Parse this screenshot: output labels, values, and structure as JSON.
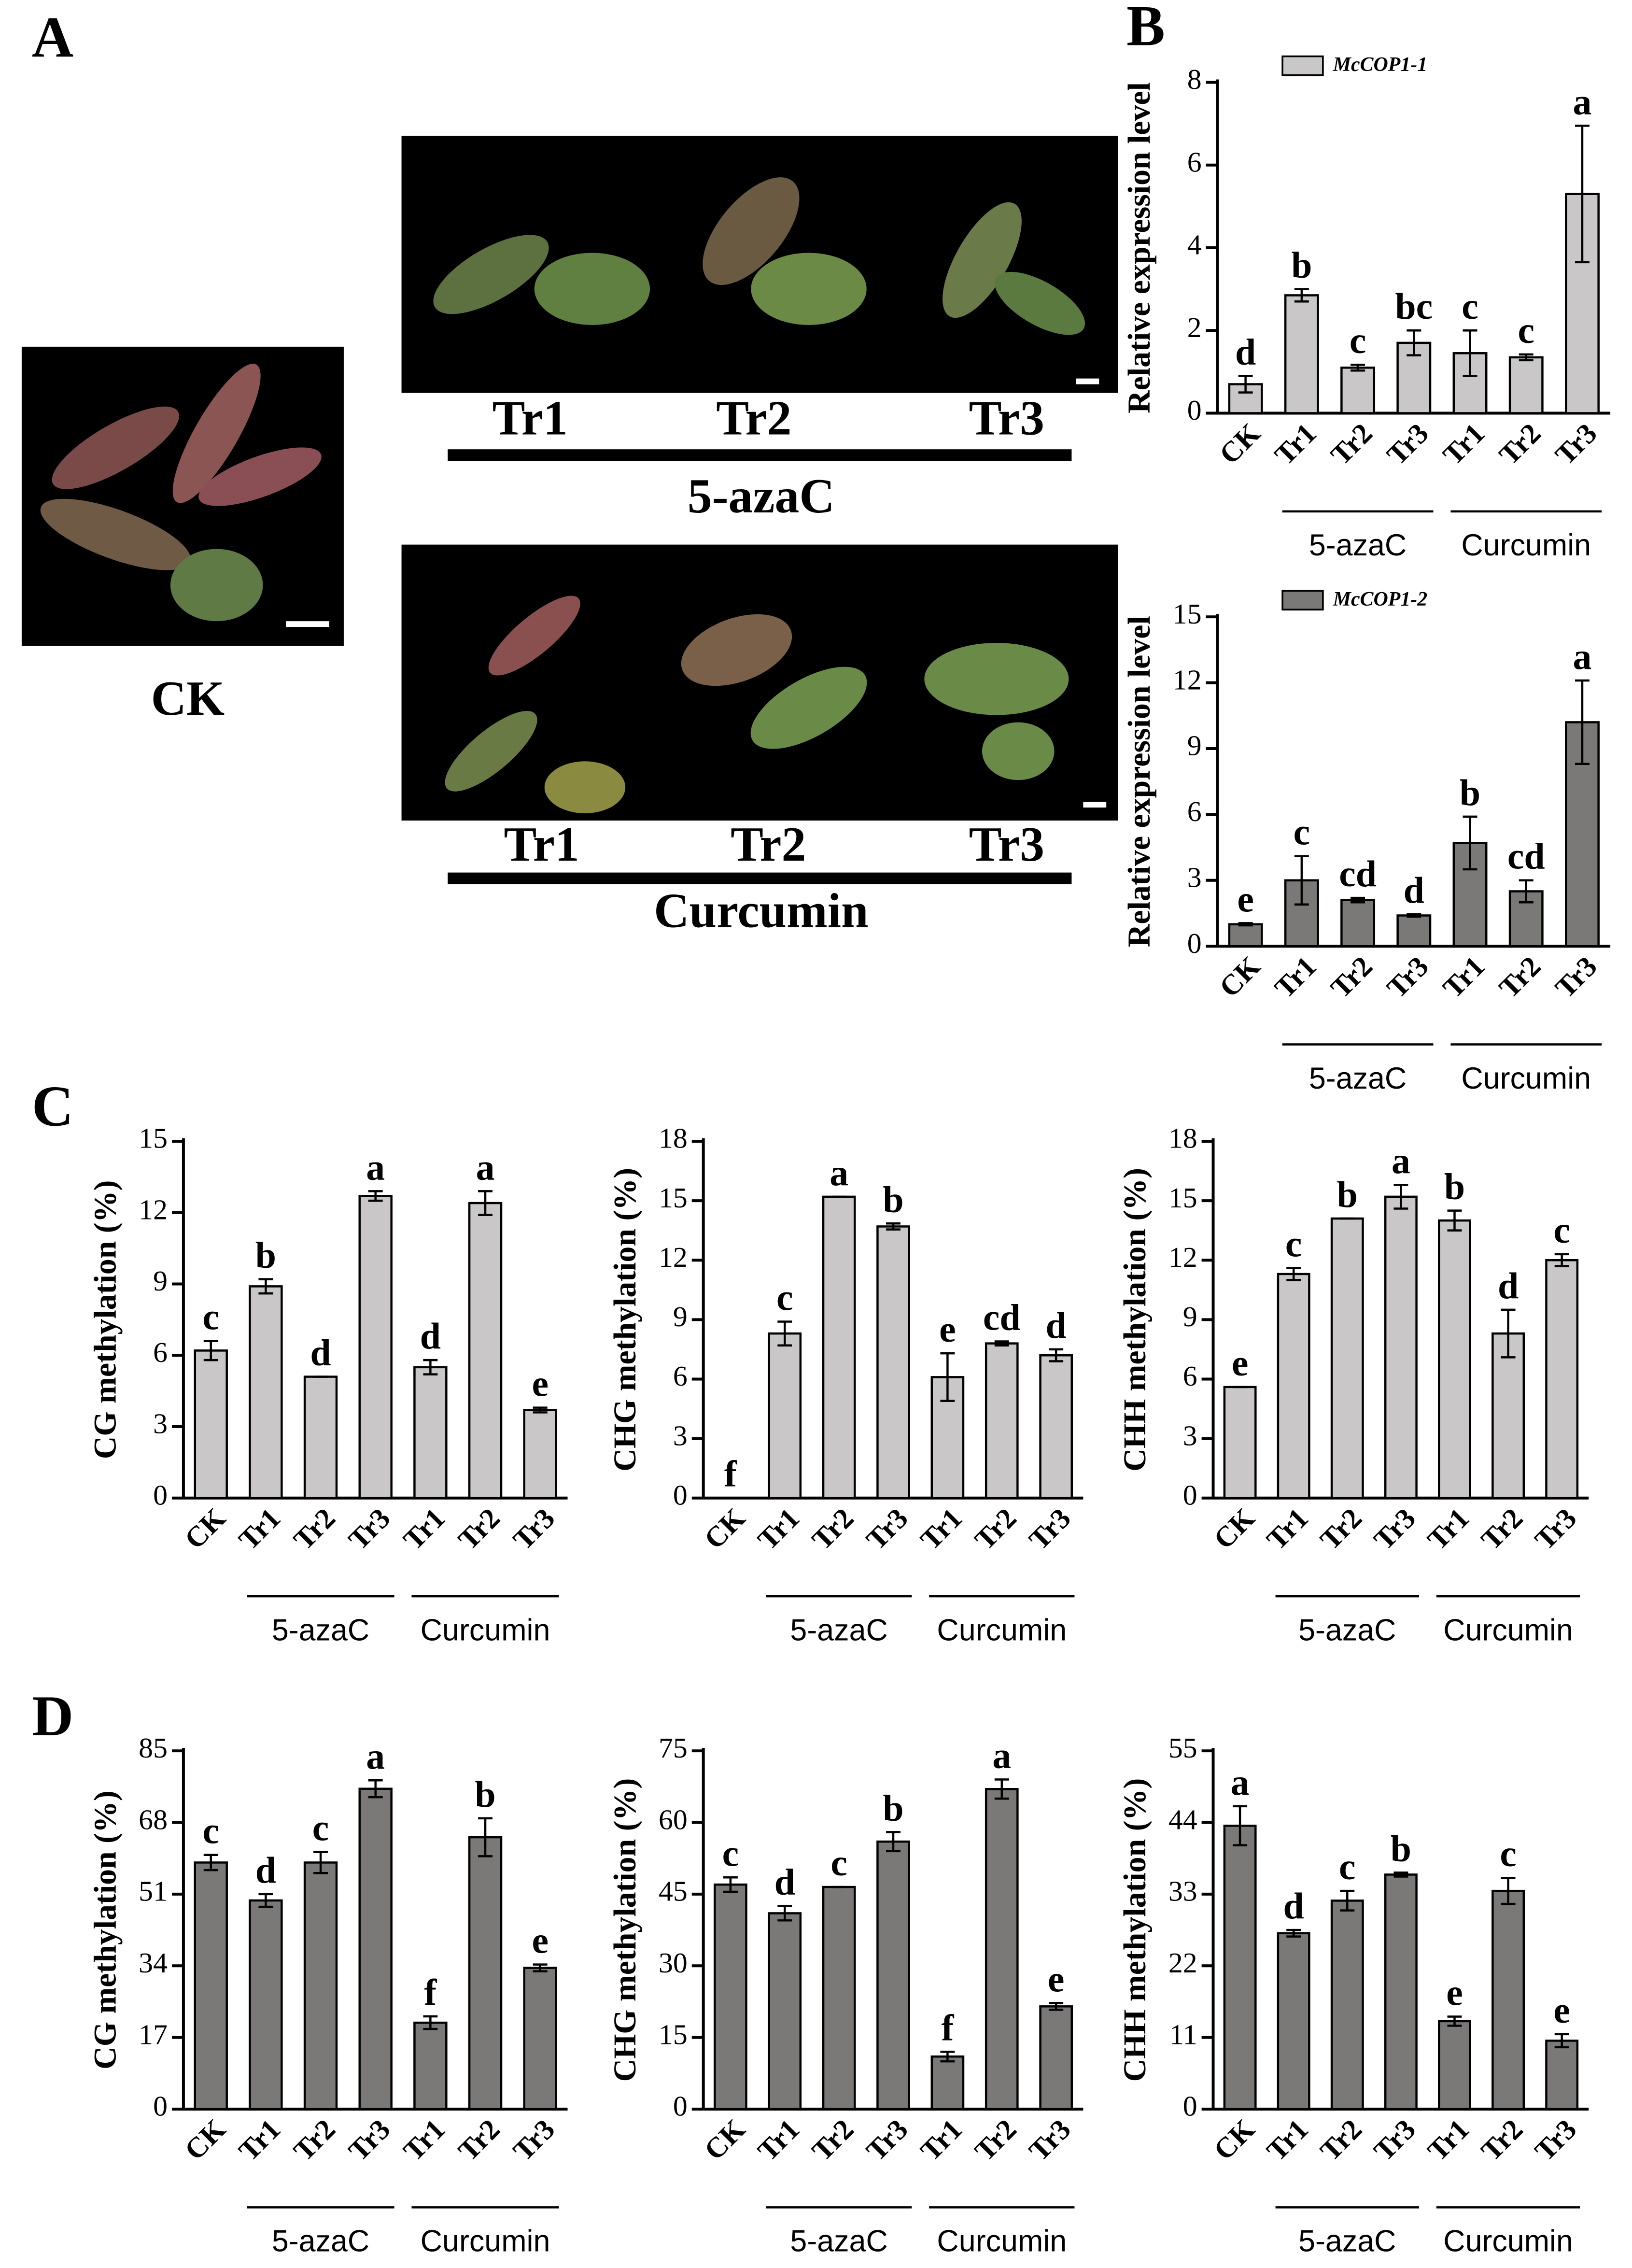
{
  "panel_labels": [
    "A",
    "B",
    "C",
    "D"
  ],
  "photos": {
    "control": "CK",
    "treatments": [
      {
        "labels": [
          "Tr1",
          "Tr2",
          "Tr3"
        ],
        "group": "5-azaC"
      },
      {
        "labels": [
          "Tr1",
          "Tr2",
          "Tr3"
        ],
        "group": "Curcumin"
      }
    ]
  },
  "chart_data": [
    {
      "type": "bar",
      "y_label": "Relative expression level",
      "categories": [
        "CK",
        "Tr1",
        "Tr2",
        "Tr3",
        "Tr1",
        "Tr2",
        "Tr3"
      ],
      "groups": [
        "5-azaC",
        "Curcumin"
      ],
      "ylim": [
        0,
        8
      ],
      "yticks": [
        0,
        2,
        4,
        6,
        8
      ],
      "series": [
        {
          "name": "McCOP1-1",
          "color": "#c9c7c7",
          "values": [
            0.7,
            2.85,
            1.1,
            1.7,
            1.45,
            1.35,
            5.3
          ],
          "errors": [
            0.2,
            0.15,
            0.07,
            0.3,
            0.55,
            0.07,
            1.65
          ],
          "letters": [
            "d",
            "b",
            "c",
            "bc",
            "c",
            "c",
            "a"
          ]
        }
      ]
    },
    {
      "type": "bar",
      "y_label": "Relative expression level",
      "categories": [
        "CK",
        "Tr1",
        "Tr2",
        "Tr3",
        "Tr1",
        "Tr2",
        "Tr3"
      ],
      "groups": [
        "5-azaC",
        "Curcumin"
      ],
      "ylim": [
        0,
        15
      ],
      "yticks": [
        0,
        3,
        6,
        9,
        12,
        15
      ],
      "series": [
        {
          "name": "McCOP1-2",
          "color": "#7b7878",
          "values": [
            1.0,
            3.0,
            2.1,
            1.4,
            4.7,
            2.5,
            10.2
          ],
          "errors": [
            0.05,
            1.1,
            0.1,
            0.05,
            1.2,
            0.5,
            1.9
          ],
          "letters": [
            "e",
            "c",
            "cd",
            "d",
            "b",
            "cd",
            "a"
          ]
        }
      ]
    },
    {
      "type": "bar",
      "y_label": "CG methylation (%)",
      "categories": [
        "CK",
        "Tr1",
        "Tr2",
        "Tr3",
        "Tr1",
        "Tr2",
        "Tr3"
      ],
      "groups": [
        "5-azaC",
        "Curcumin"
      ],
      "ylim": [
        0,
        15
      ],
      "yticks": [
        0,
        3,
        6,
        9,
        12,
        15
      ],
      "series": [
        {
          "color": "#c9c7c7",
          "values": [
            6.2,
            8.9,
            5.1,
            12.7,
            5.5,
            12.4,
            3.7
          ],
          "errors": [
            0.4,
            0.3,
            0,
            0.2,
            0.3,
            0.5,
            0.1
          ],
          "letters": [
            "c",
            "b",
            "d",
            "a",
            "d",
            "a",
            "e"
          ]
        }
      ]
    },
    {
      "type": "bar",
      "y_label": "CHG methylation (%)",
      "categories": [
        "CK",
        "Tr1",
        "Tr2",
        "Tr3",
        "Tr1",
        "Tr2",
        "Tr3"
      ],
      "groups": [
        "5-azaC",
        "Curcumin"
      ],
      "ylim": [
        0,
        18
      ],
      "yticks": [
        0,
        3,
        6,
        9,
        12,
        15,
        18
      ],
      "series": [
        {
          "color": "#c9c7c7",
          "values": [
            0,
            8.3,
            15.2,
            13.7,
            6.1,
            7.8,
            7.2
          ],
          "errors": [
            0,
            0.6,
            0,
            0.15,
            1.2,
            0.1,
            0.3
          ],
          "letters": [
            "f",
            "c",
            "a",
            "b",
            "e",
            "cd",
            "d"
          ]
        }
      ]
    },
    {
      "type": "bar",
      "y_label": "CHH methylation (%)",
      "categories": [
        "CK",
        "Tr1",
        "Tr2",
        "Tr3",
        "Tr1",
        "Tr2",
        "Tr3"
      ],
      "groups": [
        "5-azaC",
        "Curcumin"
      ],
      "ylim": [
        0,
        18
      ],
      "yticks": [
        0,
        3,
        6,
        9,
        12,
        15,
        18
      ],
      "series": [
        {
          "color": "#c9c7c7",
          "values": [
            5.6,
            11.3,
            14.1,
            15.2,
            14.0,
            8.3,
            12.0
          ],
          "errors": [
            0,
            0.3,
            0,
            0.6,
            0.5,
            1.2,
            0.3
          ],
          "letters": [
            "e",
            "c",
            "b",
            "a",
            "b",
            "d",
            "c"
          ]
        }
      ]
    },
    {
      "type": "bar",
      "y_label": "CG methylation (%)",
      "categories": [
        "CK",
        "Tr1",
        "Tr2",
        "Tr3",
        "Tr1",
        "Tr2",
        "Tr3"
      ],
      "groups": [
        "5-azaC",
        "Curcumin"
      ],
      "ylim": [
        0,
        85
      ],
      "yticks": [
        0,
        17,
        34,
        51,
        68,
        85
      ],
      "series": [
        {
          "color": "#7b7878",
          "values": [
            58.5,
            49.5,
            58.5,
            76,
            20.5,
            64.5,
            33.5
          ],
          "errors": [
            1.8,
            1.5,
            2.5,
            2,
            1.5,
            4.5,
            0.8
          ],
          "letters": [
            "c",
            "d",
            "c",
            "a",
            "f",
            "b",
            "e"
          ]
        }
      ]
    },
    {
      "type": "bar",
      "y_label": "CHG methylation (%)",
      "categories": [
        "CK",
        "Tr1",
        "Tr2",
        "Tr3",
        "Tr1",
        "Tr2",
        "Tr3"
      ],
      "groups": [
        "5-azaC",
        "Curcumin"
      ],
      "ylim": [
        0,
        75
      ],
      "yticks": [
        0,
        15,
        30,
        45,
        60,
        75
      ],
      "series": [
        {
          "color": "#7b7878",
          "values": [
            47,
            41,
            46.5,
            56,
            11,
            67,
            21.5
          ],
          "errors": [
            1.5,
            1.5,
            0,
            2,
            1,
            2,
            0.7
          ],
          "letters": [
            "c",
            "d",
            "c",
            "b",
            "f",
            "a",
            "e"
          ]
        }
      ]
    },
    {
      "type": "bar",
      "y_label": "CHH methylation (%)",
      "categories": [
        "CK",
        "Tr1",
        "Tr2",
        "Tr3",
        "Tr1",
        "Tr2",
        "Tr3"
      ],
      "groups": [
        "5-azaC",
        "Curcumin"
      ],
      "ylim": [
        0,
        55
      ],
      "yticks": [
        0,
        11,
        22,
        33,
        44,
        55
      ],
      "series": [
        {
          "color": "#7b7878",
          "values": [
            43.5,
            27,
            32,
            36,
            13.5,
            33.5,
            10.5
          ],
          "errors": [
            3,
            0.5,
            1.5,
            0.3,
            0.7,
            2,
            1
          ],
          "letters": [
            "a",
            "d",
            "c",
            "b",
            "e",
            "c",
            "e"
          ]
        }
      ]
    }
  ]
}
